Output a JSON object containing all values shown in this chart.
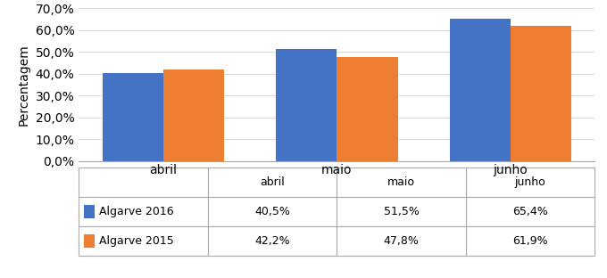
{
  "categories": [
    "abril",
    "maio",
    "junho"
  ],
  "series": [
    {
      "label": "Algarve 2016",
      "values": [
        40.5,
        51.5,
        65.4
      ],
      "color": "#4472C4"
    },
    {
      "label": "Algarve 2015",
      "values": [
        42.2,
        47.8,
        61.9
      ],
      "color": "#ED7D31"
    }
  ],
  "ylabel": "Percentagem",
  "ylim": [
    0,
    70
  ],
  "yticks": [
    0,
    10,
    20,
    30,
    40,
    50,
    60,
    70
  ],
  "ytick_labels": [
    "0,0%",
    "10,0%",
    "20,0%",
    "30,0%",
    "40,0%",
    "50,0%",
    "60,0%",
    "70,0%"
  ],
  "table_header": [
    "",
    "abril",
    "maio",
    "junho"
  ],
  "table_rows": [
    [
      "40,5%",
      "51,5%",
      "65,4%"
    ],
    [
      "42,2%",
      "47,8%",
      "61,9%"
    ]
  ],
  "table_row_labels": [
    "Algarve 2016",
    "Algarve 2015"
  ],
  "bar_width": 0.35,
  "background_color": "#ffffff",
  "grid_color": "#d9d9d9",
  "font_size": 10,
  "table_font_size": 9,
  "legend_colors": [
    "#4472C4",
    "#ED7D31"
  ]
}
